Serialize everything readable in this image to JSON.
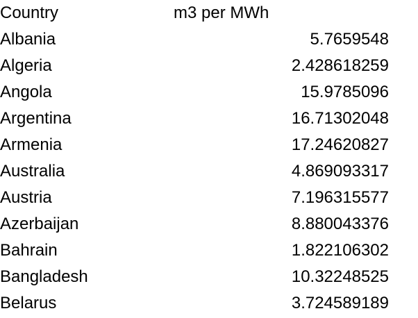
{
  "table": {
    "headers": [
      "Country",
      "m3 per MWh"
    ],
    "rows": [
      {
        "country": "Albania",
        "value": "5.7659548"
      },
      {
        "country": "Algeria",
        "value": "2.428618259"
      },
      {
        "country": "Angola",
        "value": "15.9785096"
      },
      {
        "country": "Argentina",
        "value": "16.71302048"
      },
      {
        "country": "Armenia",
        "value": "17.24620827"
      },
      {
        "country": "Australia",
        "value": "4.869093317"
      },
      {
        "country": "Austria",
        "value": "7.196315577"
      },
      {
        "country": "Azerbaijan",
        "value": "8.880043376"
      },
      {
        "country": "Bahrain",
        "value": "1.822106302"
      },
      {
        "country": "Bangladesh",
        "value": "10.32248525"
      },
      {
        "country": "Belarus",
        "value": "3.724589189"
      }
    ]
  }
}
